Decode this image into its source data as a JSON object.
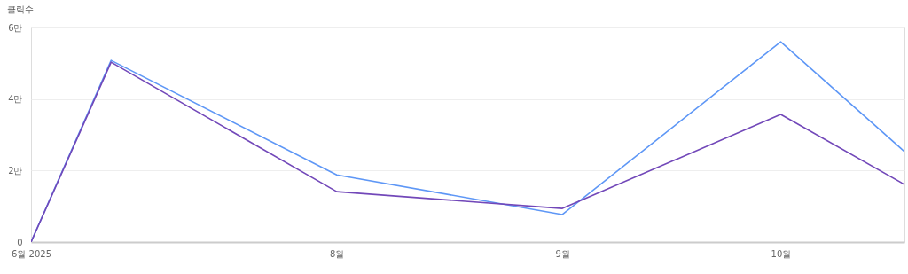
{
  "chart_data": {
    "type": "line",
    "ylabel": "클릭수",
    "x": [
      "2025-06-20",
      "2025-07-01",
      "2025-08-01",
      "2025-09-01",
      "2025-10-01",
      "2025-10-18"
    ],
    "series": [
      {
        "color": "#5e97f6",
        "values": [
          0,
          5.08,
          1.88,
          0.77,
          5.6,
          2.53
        ]
      },
      {
        "color": "#7248b9",
        "values": [
          0,
          5.03,
          1.41,
          0.94,
          3.57,
          1.61
        ]
      }
    ],
    "xlim": [
      "2025-06-20",
      "2025-10-18"
    ],
    "xticks": [
      {
        "value": "2025-06-20",
        "label": "6월 2025"
      },
      {
        "value": "2025-08-01",
        "label": "8월"
      },
      {
        "value": "2025-09-01",
        "label": "9월"
      },
      {
        "value": "2025-10-01",
        "label": "10월"
      }
    ],
    "ylim": [
      0,
      6
    ],
    "yticks": [
      0,
      {
        "value": 2,
        "label": "2만"
      },
      {
        "value": 4,
        "label": "4만"
      },
      {
        "value": 6,
        "label": "6만"
      }
    ],
    "grid": "y",
    "marker": "none",
    "line_style": "solid"
  }
}
